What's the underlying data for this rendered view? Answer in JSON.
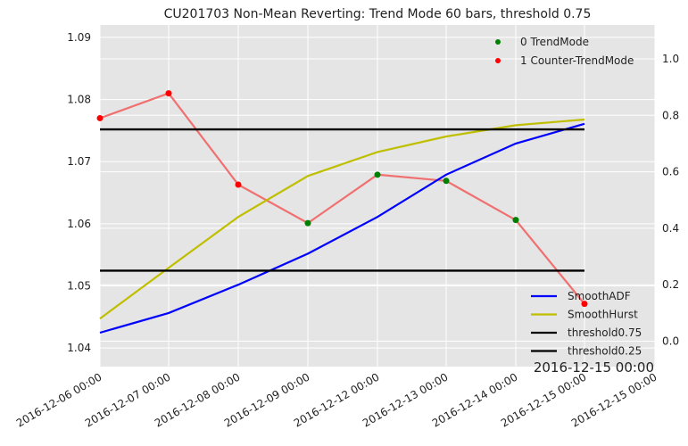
{
  "chart_data": {
    "type": "line",
    "title": "CU201703 Non-Mean Reverting: Trend Mode 60 bars, threshold 0.75",
    "corner_label": "2016-12-15 00:00",
    "x_tick_labels": [
      "2016-12-06 00:00",
      "2016-12-07 00:00",
      "2016-12-08 00:00",
      "2016-12-09 00:00",
      "2016-12-12 00:00",
      "2016-12-13 00:00",
      "2016-12-14 00:00",
      "2016-12-15 00:00",
      "2016-12-15 00:00"
    ],
    "left_axis": {
      "ylim": [
        1.037,
        1.092
      ],
      "ticks": [
        1.04,
        1.05,
        1.06,
        1.07,
        1.08,
        1.09
      ],
      "tick_labels": [
        "1.04",
        "1.05",
        "1.06",
        "1.07",
        "1.08",
        "1.09"
      ]
    },
    "right_axis": {
      "ylim": [
        -0.09,
        1.12
      ],
      "ticks": [
        0.0,
        0.2,
        0.4,
        0.6,
        0.8,
        1.0
      ],
      "tick_labels": [
        "0.0",
        "0.2",
        "0.4",
        "0.6",
        "0.8",
        "1.0"
      ]
    },
    "price_series": {
      "color": "#f07070",
      "values": [
        1.077,
        1.081,
        1.0663,
        1.0601,
        1.0679,
        1.0669,
        1.0606,
        1.0471
      ]
    },
    "mode_points": [
      {
        "mode": 1,
        "value": 1.077
      },
      {
        "mode": 1,
        "value": 1.081
      },
      {
        "mode": 1,
        "value": 1.0663
      },
      {
        "mode": 0,
        "value": 1.0601
      },
      {
        "mode": 0,
        "value": 1.0679
      },
      {
        "mode": 0,
        "value": 1.0669
      },
      {
        "mode": 0,
        "value": 1.0606
      },
      {
        "mode": 1,
        "value": 1.0471
      }
    ],
    "series": [
      {
        "name": "SmoothADF",
        "color": "#0000ff",
        "values": [
          0.03,
          0.1,
          0.2,
          0.31,
          0.44,
          0.59,
          0.7,
          0.77
        ]
      },
      {
        "name": "SmoothHurst",
        "color": "#bfbf00",
        "values": [
          0.08,
          0.26,
          0.44,
          0.585,
          0.67,
          0.725,
          0.765,
          0.785
        ]
      },
      {
        "name": "threshold0.75",
        "color": "#000000",
        "values": [
          0.75,
          0.75,
          0.75,
          0.75,
          0.75,
          0.75,
          0.75,
          0.75
        ]
      },
      {
        "name": "threshold0.25",
        "color": "#000000",
        "values": [
          0.25,
          0.25,
          0.25,
          0.25,
          0.25,
          0.25,
          0.25,
          0.25
        ]
      }
    ],
    "marker_legend": [
      {
        "label": "0 TrendMode",
        "color": "#008000"
      },
      {
        "label": "1 Counter-TrendMode",
        "color": "#ff0000"
      }
    ],
    "line_legend": [
      {
        "label": "SmoothADF",
        "color": "#0000ff"
      },
      {
        "label": "SmoothHurst",
        "color": "#bfbf00"
      },
      {
        "label": "threshold0.75",
        "color": "#000000"
      },
      {
        "label": "threshold0.25",
        "color": "#000000"
      }
    ],
    "legend_placement": [
      "top-right",
      "bottom-right"
    ],
    "grid": true,
    "background": "#e5e5e5"
  }
}
